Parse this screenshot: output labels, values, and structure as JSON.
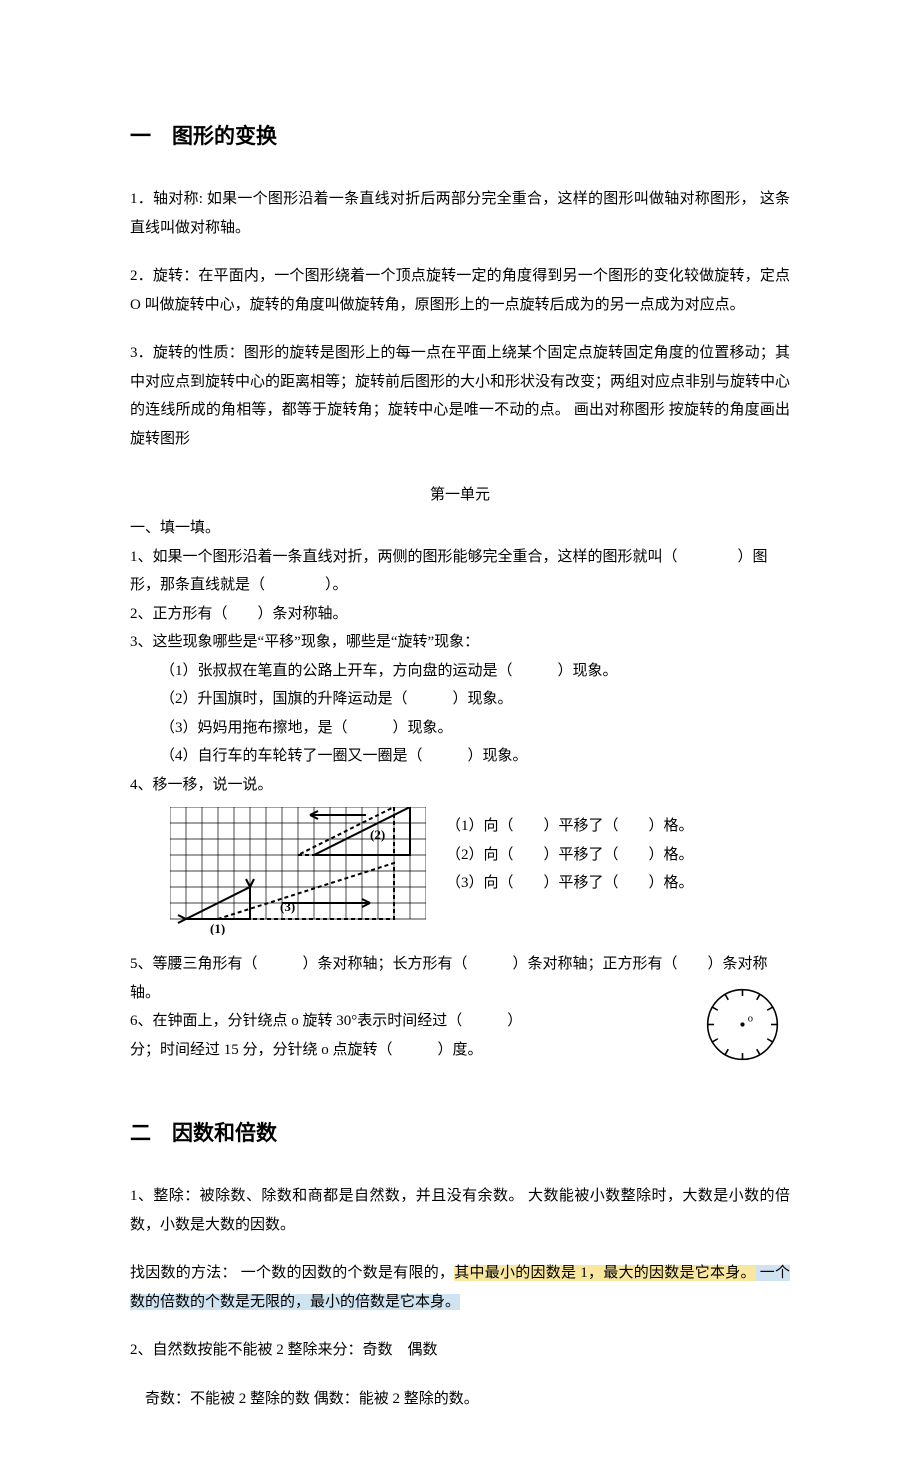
{
  "section1": {
    "title": "一　图形的变换",
    "p1": "1．轴对称: 如果一个图形沿着一条直线对折后两部分完全重合，这样的图形叫做轴对称图形， 这条直线叫做对称轴。",
    "p2": "2．旋转：在平面内，一个图形绕着一个顶点旋转一定的角度得到另一个图形的变化较做旋转，定点 O 叫做旋转中心，旋转的角度叫做旋转角，原图形上的一点旋转后成为的另一点成为对应点。",
    "p3": "3．旋转的性质：图形的旋转是图形上的每一点在平面上绕某个固定点旋转固定角度的位置移动；其中对应点到旋转中心的距离相等；旋转前后图形的大小和形状没有改变；两组对应点非别与旋转中心的连线所成的角相等，都等于旋转角；旋转中心是唯一不动的点。 画出对称图形 按旋转的角度画出旋转图形"
  },
  "unit1": {
    "title": "第一单元",
    "heading_fill": "一、填一填。",
    "q1": "1、如果一个图形沿着一条直线对折，两侧的图形能够完全重合，这样的图形就叫（　　　　）图形，那条直线就是（　　　　）。",
    "q2": "2、正方形有（　　）条对称轴。",
    "q3": "3、这些现象哪些是“平移”现象，哪些是“旋转”现象：",
    "q3_1": "（1）张叔叔在笔直的公路上开车，方向盘的运动是（　　　）现象。",
    "q3_2": "（2）升国旗时，国旗的升降运动是（　　　）现象。",
    "q3_3": "（3）妈妈用拖布擦地，是（　　　）现象。",
    "q3_4": "（4）自行车的车轮转了一圈又一圈是（　　　）现象。",
    "q4": "4、移一移，说一说。",
    "q4_1": "（1）向（　　）平移了（　　）格。",
    "q4_2": "（2）向（　　）平移了（　　）格。",
    "q4_3": "（3）向（　　）平移了（　　）格。",
    "q5": "5、等腰三角形有（　　　）条对称轴；长方形有（　　　）条对称轴；正方形有（　　）条对称轴。",
    "q6a": "6、在钟面上，分针绕点 o 旋转 30°表示时间经过（　　　）",
    "q6b": "分；时间经过 15 分，分针绕 o 点旋转（　　　）度。"
  },
  "section2": {
    "title": "二　因数和倍数",
    "p1": "1、整除：被除数、除数和商都是自然数，并且没有余数。 大数能被小数整除时，大数是小数的倍数，小数是大数的因数。",
    "p2_plain": "  找因数的方法： 一个数的因数的个数是有限的，",
    "p2_y": "其中最小的因数是 1，最大的因数是它本身。",
    "p2_b": " 一个数的倍数的个数是无限的，最小的倍数是它本身。",
    "p3": "2、自然数按能不能被 2 整除来分：奇数　偶数",
    "p4": "　奇数：不能被 2 整除的数 偶数：能被 2 整除的数。"
  },
  "figure": {
    "grid_cols": 16,
    "grid_rows": 7,
    "cell": 16,
    "stroke": "#000000",
    "labels": {
      "l1": "(1)",
      "l2": "(2)",
      "l3": "(3)"
    }
  },
  "colors": {
    "highlight_yellow": "#f9e79f",
    "highlight_blue": "#d0e3f0"
  }
}
